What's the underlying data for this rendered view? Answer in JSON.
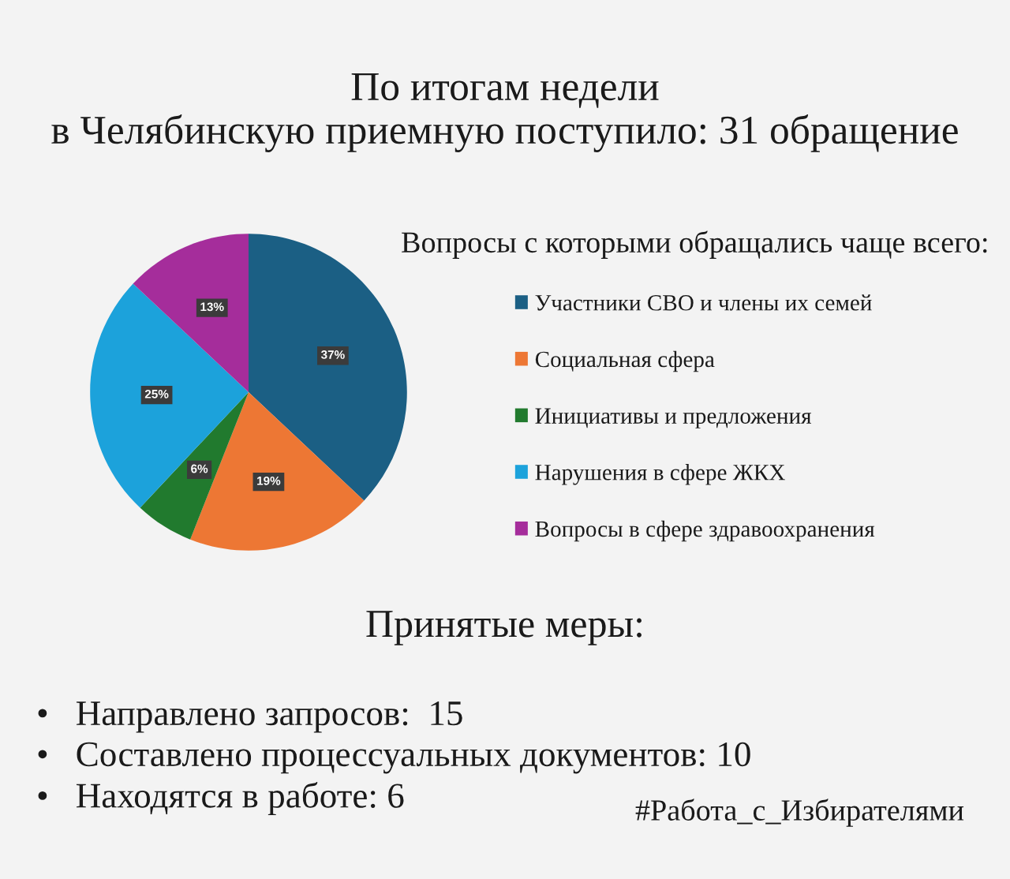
{
  "chart_data": {
    "type": "pie",
    "title": "По итогам недели\nв Челябинскую приемную поступило: 31 обращение",
    "legend_title": "Вопросы с которыми обращались чаще всего:",
    "categories": [
      "Участники СВО и члены их семей",
      "Социальная сфера",
      "Инициативы и предложения",
      "Нарушения в сфере ЖКХ",
      "Вопросы в сфере здравоохранения"
    ],
    "values": [
      37,
      19,
      6,
      25,
      13
    ],
    "value_labels": [
      "37%",
      "19%",
      "6%",
      "25%",
      "13%"
    ],
    "colors": [
      "#1b5f84",
      "#ed7734",
      "#217a2e",
      "#1ca2db",
      "#a52d9b"
    ],
    "legend": "right",
    "annotations": [
      "Принятые меры:",
      "•   Направлено запросов:  15",
      "•   Составлено процессуальных документов: 10",
      "•   Находятся в работе: 6",
      "#Работа_с_Избирателями"
    ]
  }
}
